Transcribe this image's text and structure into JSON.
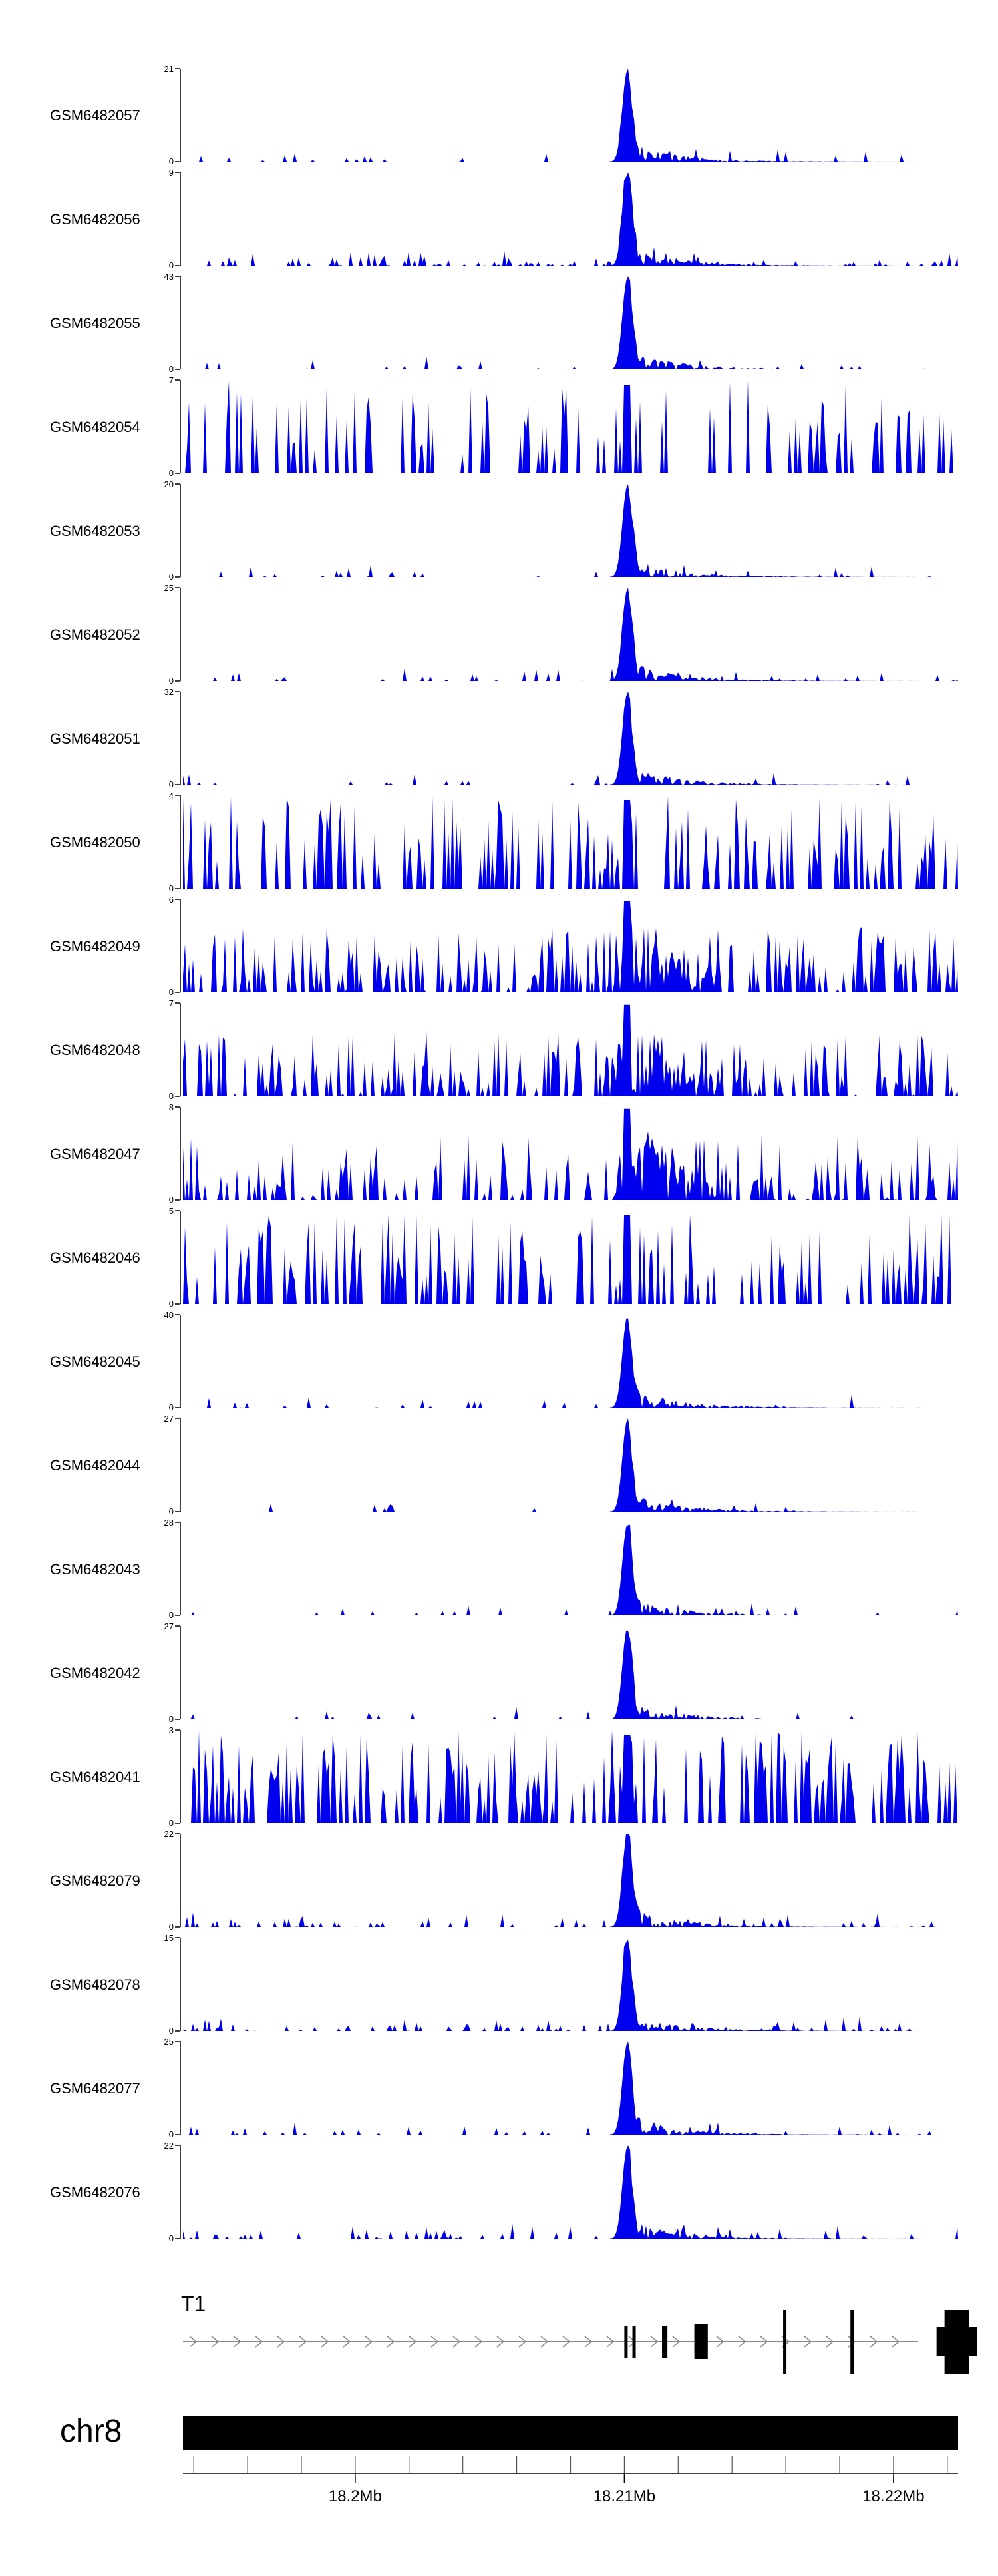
{
  "chart_data": {
    "type": "area",
    "title": "",
    "xlabel": "",
    "ylabel": "",
    "x_axis": {
      "chromosome": "chr8",
      "range_mb": [
        18.1936,
        18.2224
      ],
      "ticks_mb": [
        18.2,
        18.21,
        18.22
      ],
      "tick_labels": [
        "18.2Mb",
        "18.21Mb",
        "18.22Mb"
      ]
    },
    "gene_label": "T1",
    "gene_exons_mb": [
      [
        18.21,
        18.2101
      ],
      [
        18.2103,
        18.2104
      ],
      [
        18.2114,
        18.2116
      ],
      [
        18.2126,
        18.2131
      ],
      [
        18.2159,
        18.216
      ],
      [
        18.2184,
        18.2185
      ],
      [
        18.2216,
        18.2231
      ]
    ],
    "tracks": [
      {
        "name": "GSM6482057",
        "ymax": 21,
        "ymin_label": "0",
        "ymax_label": "21",
        "profile": "focal",
        "noise": 0.08
      },
      {
        "name": "GSM6482056",
        "ymax": 9,
        "ymin_label": "0",
        "ymax_label": "9",
        "profile": "focal",
        "noise": 0.22
      },
      {
        "name": "GSM6482055",
        "ymax": 43,
        "ymin_label": "0",
        "ymax_label": "43",
        "profile": "focal",
        "noise": 0.06
      },
      {
        "name": "GSM6482054",
        "ymax": 7,
        "ymin_label": "0",
        "ymax_label": "7",
        "profile": "spiky",
        "noise": 0.55
      },
      {
        "name": "GSM6482053",
        "ymax": 20,
        "ymin_label": "0",
        "ymax_label": "20",
        "profile": "focal",
        "noise": 0.1
      },
      {
        "name": "GSM6482052",
        "ymax": 25,
        "ymin_label": "0",
        "ymax_label": "25",
        "profile": "focal",
        "noise": 0.1
      },
      {
        "name": "GSM6482051",
        "ymax": 32,
        "ymin_label": "0",
        "ymax_label": "32",
        "profile": "focal",
        "noise": 0.07
      },
      {
        "name": "GSM6482050",
        "ymax": 4,
        "ymin_label": "0",
        "ymax_label": "4",
        "profile": "spiky",
        "noise": 0.8
      },
      {
        "name": "GSM6482049",
        "ymax": 6,
        "ymin_label": "0",
        "ymax_label": "6",
        "profile": "broad",
        "noise": 0.45
      },
      {
        "name": "GSM6482048",
        "ymax": 7,
        "ymin_label": "0",
        "ymax_label": "7",
        "profile": "broad",
        "noise": 0.4
      },
      {
        "name": "GSM6482047",
        "ymax": 8,
        "ymin_label": "0",
        "ymax_label": "8",
        "profile": "broad",
        "noise": 0.35
      },
      {
        "name": "GSM6482046",
        "ymax": 5,
        "ymin_label": "0",
        "ymax_label": "5",
        "profile": "spiky",
        "noise": 0.7
      },
      {
        "name": "GSM6482045",
        "ymax": 40,
        "ymin_label": "0",
        "ymax_label": "40",
        "profile": "focal",
        "noise": 0.05
      },
      {
        "name": "GSM6482044",
        "ymax": 27,
        "ymin_label": "0",
        "ymax_label": "27",
        "profile": "focal",
        "noise": 0.05
      },
      {
        "name": "GSM6482043",
        "ymax": 28,
        "ymin_label": "0",
        "ymax_label": "28",
        "profile": "focal",
        "noise": 0.06
      },
      {
        "name": "GSM6482042",
        "ymax": 27,
        "ymin_label": "0",
        "ymax_label": "27",
        "profile": "focal",
        "noise": 0.06
      },
      {
        "name": "GSM6482041",
        "ymax": 3,
        "ymin_label": "0",
        "ymax_label": "3",
        "profile": "spiky",
        "noise": 0.85
      },
      {
        "name": "GSM6482079",
        "ymax": 22,
        "ymin_label": "0",
        "ymax_label": "22",
        "profile": "focal",
        "noise": 0.14
      },
      {
        "name": "GSM6482078",
        "ymax": 15,
        "ymin_label": "0",
        "ymax_label": "15",
        "profile": "focal",
        "noise": 0.2
      },
      {
        "name": "GSM6482077",
        "ymax": 25,
        "ymin_label": "0",
        "ymax_label": "25",
        "profile": "focal",
        "noise": 0.12
      },
      {
        "name": "GSM6482076",
        "ymax": 22,
        "ymin_label": "0",
        "ymax_label": "22",
        "profile": "focal",
        "noise": 0.14
      }
    ]
  },
  "colors": {
    "signal": "#0000ee",
    "axis": "#000000",
    "gene": "#000000",
    "ideogram": "#000000",
    "arrow": "#888888"
  }
}
